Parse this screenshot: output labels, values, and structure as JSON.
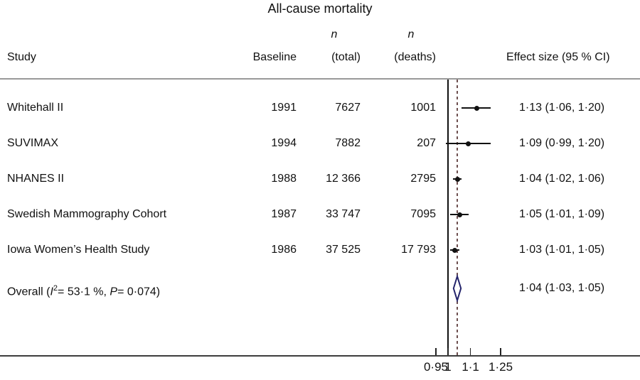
{
  "title": "All-cause mortality",
  "headers": {
    "study": "Study",
    "baseline": "Baseline",
    "n_symbol": "n",
    "total": "(total)",
    "deaths": "(deaths)",
    "effect": "Effect size (95 % CI)"
  },
  "rows": [
    {
      "study": "Whitehall II",
      "baseline": "1991",
      "n_total": "7627",
      "n_deaths": "1001",
      "effect": "1·13 (1·06, 1·20)",
      "est": 1.13,
      "lo": 1.06,
      "hi": 1.2
    },
    {
      "study": "SUVIMAX",
      "baseline": "1994",
      "n_total": "7882",
      "n_deaths": "207",
      "effect": "1·09 (0·99, 1·20)",
      "est": 1.09,
      "lo": 0.99,
      "hi": 1.2
    },
    {
      "study": "NHANES II",
      "baseline": "1988",
      "n_total": "12 366",
      "n_deaths": "2795",
      "effect": "1·04 (1·02, 1·06)",
      "est": 1.04,
      "lo": 1.02,
      "hi": 1.06
    },
    {
      "study": "Swedish Mammography Cohort",
      "baseline": "1987",
      "n_total": "33 747",
      "n_deaths": "7095",
      "effect": "1·05 (1·01, 1·09)",
      "est": 1.05,
      "lo": 1.01,
      "hi": 1.09
    },
    {
      "study": "Iowa Women’s Health Study",
      "baseline": "1986",
      "n_total": "37 525",
      "n_deaths": "17 793",
      "effect": "1·03 (1·01, 1·05)",
      "est": 1.03,
      "lo": 1.01,
      "hi": 1.05
    }
  ],
  "overall": {
    "label_pre": "Overall (",
    "i_symbol": "I",
    "i_sup": "2",
    "label_mid": "= 53·1 %, ",
    "p_symbol": "P",
    "label_post": "= 0·074)",
    "effect": "1·04 (1·03, 1·05)",
    "est": 1.04,
    "lo": 1.03,
    "hi": 1.05
  },
  "axis": {
    "scale": "log",
    "ref_value": 1,
    "overall_value": 1.04,
    "ticks": [
      {
        "label": "0·95",
        "value": 0.95
      },
      {
        "label": "1",
        "value": 1.0
      },
      {
        "label": "1·1",
        "value": 1.1
      },
      {
        "label": "1·25",
        "value": 1.25
      }
    ]
  },
  "colors": {
    "text": "#111111",
    "marker": "#111111",
    "diamond_outline": "#23236b",
    "dashed_line": "#6e5050",
    "axis_line": "#3d3d3d",
    "header_rule": "#999999"
  },
  "chart_data": {
    "type": "scatter",
    "subtype": "forest-plot",
    "title": "All-cause mortality",
    "x_scale": "log",
    "x_ticks": [
      0.95,
      1,
      1.1,
      1.25
    ],
    "reference_line": 1.0,
    "legend": "Effect size (95 % CI)",
    "studies": [
      "Whitehall II",
      "SUVIMAX",
      "NHANES II",
      "Swedish Mammography Cohort",
      "Iowa Women’s Health Study"
    ],
    "baseline_years": [
      1991,
      1994,
      1988,
      1987,
      1986
    ],
    "n_total": [
      7627,
      7882,
      12366,
      33747,
      37525
    ],
    "n_deaths": [
      1001,
      207,
      2795,
      7095,
      17793
    ],
    "effect_sizes": [
      1.13,
      1.09,
      1.04,
      1.05,
      1.03
    ],
    "ci_lower": [
      1.06,
      0.99,
      1.02,
      1.01,
      1.01
    ],
    "ci_upper": [
      1.2,
      1.2,
      1.06,
      1.09,
      1.05
    ],
    "overall": {
      "effect": 1.04,
      "ci_lower": 1.03,
      "ci_upper": 1.05,
      "i_squared_pct": 53.1,
      "p_value": 0.074
    }
  }
}
